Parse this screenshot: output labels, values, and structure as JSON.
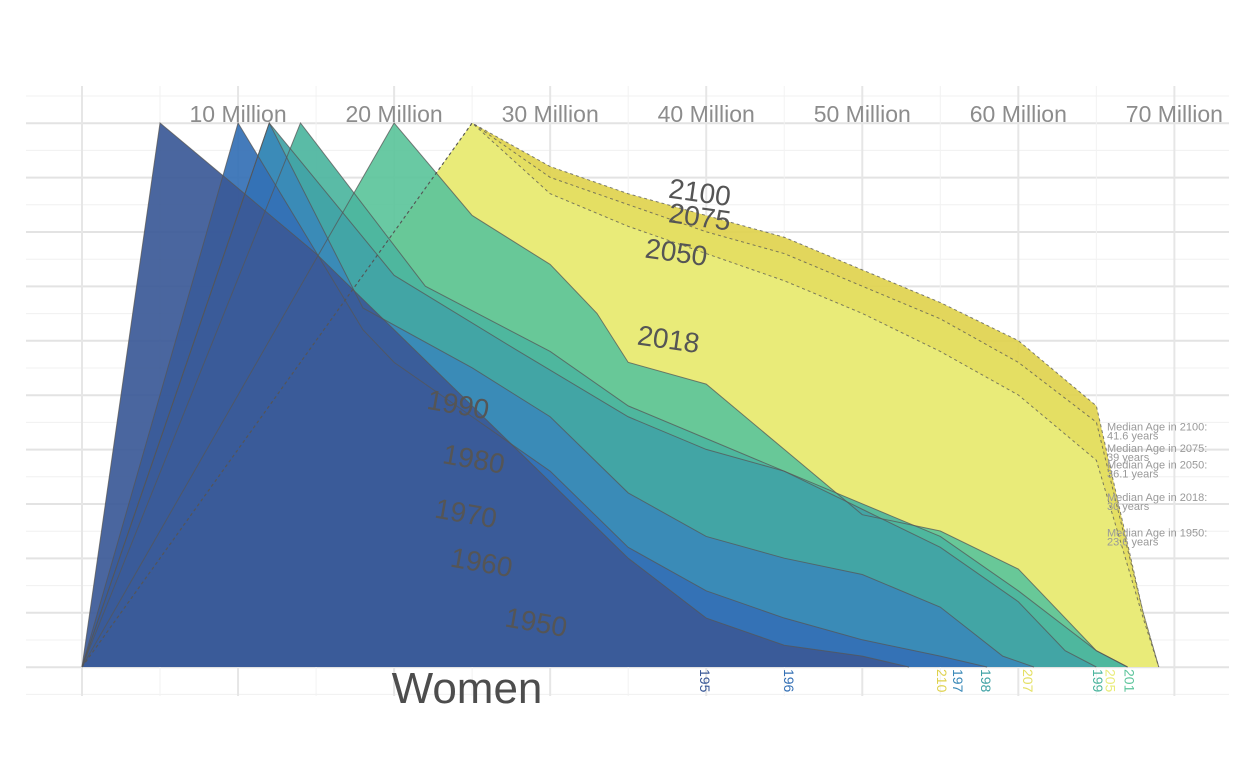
{
  "chart_data": {
    "type": "area",
    "title": "",
    "facet_label": "Women",
    "x_unit_labels": [
      "10 Million",
      "20 Million",
      "30 Million",
      "40 Million",
      "50 Million",
      "60 Million",
      "70 Million"
    ],
    "x_ticks": [
      10,
      20,
      30,
      40,
      50,
      60,
      70
    ],
    "xlim": [
      0,
      73.5
    ],
    "ylim": [
      0,
      100
    ],
    "grid": true,
    "series": [
      {
        "name": "1950",
        "color": "#3b5997",
        "x": [
          0,
          5,
          10,
          15,
          20,
          25,
          30,
          35,
          40,
          45,
          50,
          53
        ],
        "y": [
          0,
          100,
          88,
          76,
          62,
          48,
          34,
          20,
          9,
          4,
          2,
          0
        ]
      },
      {
        "name": "1960",
        "color": "#3470b5",
        "x": [
          0,
          10,
          18,
          20,
          25,
          30,
          35,
          40,
          45,
          50,
          55,
          58
        ],
        "y": [
          0,
          100,
          62,
          56,
          46,
          36,
          22,
          14,
          9,
          5,
          2,
          0
        ]
      },
      {
        "name": "1970",
        "color": "#3a89b8",
        "x": [
          0,
          12,
          18,
          25,
          30,
          35,
          40,
          45,
          50,
          55,
          59,
          61
        ],
        "y": [
          0,
          100,
          66,
          55,
          46,
          32,
          24,
          20,
          17,
          11,
          2,
          0
        ]
      },
      {
        "name": "1980",
        "color": "#41a3a6",
        "x": [
          0,
          12,
          20,
          28,
          35,
          40,
          45,
          50,
          55,
          60,
          63,
          65
        ],
        "y": [
          0,
          100,
          72,
          58,
          46,
          40,
          36,
          29,
          22,
          12,
          3,
          0
        ]
      },
      {
        "name": "1990",
        "color": "#4cb59e",
        "x": [
          0,
          14,
          22,
          30,
          35,
          40,
          45,
          50,
          55,
          60,
          65,
          67
        ],
        "y": [
          0,
          100,
          70,
          58,
          48,
          42,
          36,
          30,
          24,
          14,
          3,
          0
        ]
      },
      {
        "name": "2018",
        "color": "#5cc49b",
        "x": [
          0,
          20,
          25,
          30,
          33,
          35,
          40,
          45,
          50,
          55,
          60,
          65,
          67
        ],
        "y": [
          0,
          100,
          83,
          74,
          65,
          56,
          52,
          40,
          28,
          25,
          18,
          3,
          0
        ]
      },
      {
        "name": "2050",
        "color": "#e9ec7b",
        "x": [
          0,
          25,
          30,
          35,
          40,
          45,
          50,
          55,
          60,
          65,
          68,
          69
        ],
        "y": [
          0,
          100,
          87,
          81,
          76,
          71,
          65,
          58,
          50,
          38,
          9,
          0
        ]
      },
      {
        "name": "2075",
        "color": "#e4e064",
        "x": [
          0,
          25,
          30,
          35,
          40,
          45,
          50,
          55,
          60,
          65,
          68,
          69
        ],
        "y": [
          0,
          100,
          90,
          85,
          80,
          76,
          70,
          64,
          56,
          45,
          10,
          0
        ]
      },
      {
        "name": "2100",
        "color": "#dfd24e",
        "x": [
          0,
          25,
          30,
          35,
          40,
          45,
          50,
          55,
          60,
          65,
          68,
          69
        ],
        "y": [
          0,
          100,
          92,
          87,
          83,
          79,
          73,
          67,
          60,
          48,
          10,
          0
        ]
      }
    ],
    "curve_labels": [
      {
        "text": "2100",
        "x": 39.5,
        "y": 85.5,
        "rot": 8
      },
      {
        "text": "2075",
        "x": 39.5,
        "y": 81.0,
        "rot": 8
      },
      {
        "text": "2050",
        "x": 38.0,
        "y": 74.5,
        "rot": 8
      },
      {
        "text": "2018",
        "x": 37.5,
        "y": 58.5,
        "rot": 8
      },
      {
        "text": "1990",
        "x": 24.0,
        "y": 46.5,
        "rot": 10
      },
      {
        "text": "1980",
        "x": 25.0,
        "y": 36.5,
        "rot": 10
      },
      {
        "text": "1970",
        "x": 24.5,
        "y": 26.5,
        "rot": 10
      },
      {
        "text": "1960",
        "x": 25.5,
        "y": 17.5,
        "rot": 10
      },
      {
        "text": "1950",
        "x": 29.0,
        "y": 6.5,
        "rot": 10
      }
    ],
    "annotations": [
      {
        "line1": "Median Age in 2100:",
        "line2": "41.6 years",
        "y": 43.5
      },
      {
        "line1": "Median Age in 2075:",
        "line2": "39 years",
        "y": 39.5
      },
      {
        "line1": "Median Age in 2050:",
        "line2": "36.1 years",
        "y": 36.5
      },
      {
        "line1": "Median Age in 2018:",
        "line2": "30 years",
        "y": 30.5
      },
      {
        "line1": "Median Age in 1950:",
        "line2": "23.6 years",
        "y": 24.0
      }
    ],
    "bottom_year_labels": [
      {
        "text": "195",
        "x": 39.6,
        "color": "#3b5997"
      },
      {
        "text": "196",
        "x": 45.0,
        "color": "#3470b5"
      },
      {
        "text": "210",
        "x": 54.8,
        "color": "#dfd24e"
      },
      {
        "text": "197",
        "x": 55.8,
        "color": "#3a89b8"
      },
      {
        "text": "198",
        "x": 57.6,
        "color": "#41a3a6"
      },
      {
        "text": "207",
        "x": 60.3,
        "color": "#e4e064"
      },
      {
        "text": "199",
        "x": 64.8,
        "color": "#4cb59e"
      },
      {
        "text": "205",
        "x": 65.6,
        "color": "#e9ec7b"
      },
      {
        "text": "201",
        "x": 66.8,
        "color": "#5cc49b"
      }
    ]
  }
}
